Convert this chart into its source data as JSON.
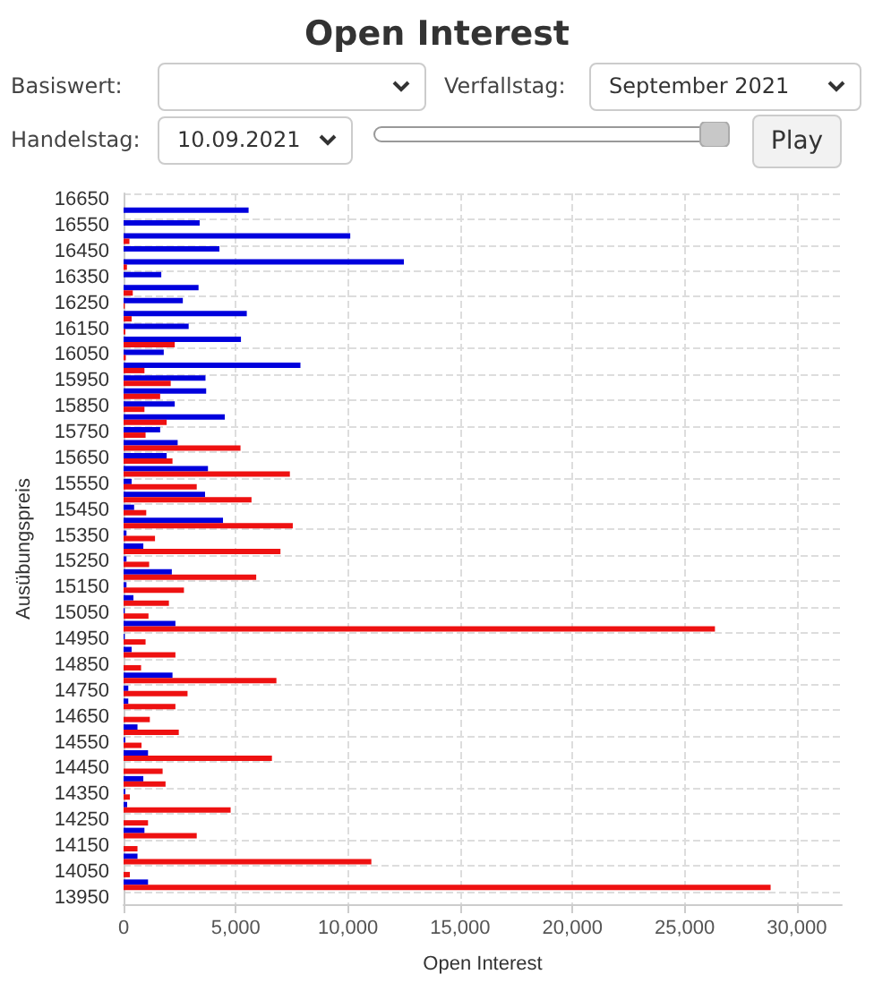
{
  "chart_data": {
    "type": "bar",
    "orientation": "horizontal",
    "title": "Open Interest",
    "xlabel": "Open Interest",
    "ylabel": "Ausübungspreis",
    "annotations": [
      "Basiswert:",
      "Verfallstag:",
      "September 2021",
      "Handelstag:",
      "10.09.2021",
      "Play"
    ],
    "categories": [
      "16650",
      null,
      "16550",
      null,
      "16450",
      null,
      "16350",
      null,
      "16250",
      null,
      "16150",
      null,
      "16050",
      null,
      "15950",
      null,
      "15850",
      null,
      "15750",
      null,
      "15650",
      null,
      "15550",
      null,
      "15450",
      null,
      "15350",
      null,
      "15250",
      null,
      "15150",
      null,
      "15050",
      null,
      "14950",
      null,
      "14850",
      null,
      "14750",
      null,
      "14650",
      null,
      "14550",
      null,
      "14450",
      null,
      "14350",
      null,
      "14250",
      null,
      "14150",
      null,
      "14050",
      null,
      "13950"
    ],
    "series": [
      {
        "color": "#0000dd",
        "values": [
          null,
          5570,
          3390,
          10100,
          4270,
          12490,
          1680,
          3340,
          2640,
          5490,
          2900,
          5230,
          1790,
          7880,
          3650,
          3680,
          2280,
          4510,
          1630,
          2410,
          1920,
          3760,
          360,
          3630,
          470,
          4430,
          130,
          880,
          130,
          2150,
          130,
          440,
          50,
          2310,
          50,
          360,
          0,
          2180,
          210,
          210,
          0,
          620,
          80,
          1090,
          0,
          880,
          80,
          160,
          0,
          930,
          0,
          620,
          0,
          1090,
          null
        ]
      },
      {
        "color": "#ee1111",
        "values": [
          null,
          0,
          0,
          260,
          0,
          150,
          0,
          410,
          50,
          360,
          80,
          2280,
          100,
          930,
          2100,
          1630,
          930,
          1920,
          980,
          5210,
          2180,
          7410,
          3260,
          5700,
          1010,
          7540,
          1400,
          6990,
          1140,
          5910,
          2690,
          2020,
          1110,
          26350,
          980,
          2310,
          780,
          6810,
          2850,
          2310,
          1170,
          2460,
          800,
          6610,
          1740,
          1870,
          280,
          4770,
          1090,
          3260,
          620,
          11040,
          280,
          28830,
          null
        ]
      }
    ],
    "xlim": [
      0,
      32000
    ],
    "xticks": [
      0,
      {
        "value": 5000,
        "label": "5,000"
      },
      {
        "value": 10000,
        "label": "10,000"
      },
      {
        "value": 15000,
        "label": "15,000"
      },
      {
        "value": 20000,
        "label": "20,000"
      },
      {
        "value": 25000,
        "label": "25,000"
      },
      {
        "value": 30000,
        "label": "30,000"
      }
    ],
    "grid": true
  }
}
